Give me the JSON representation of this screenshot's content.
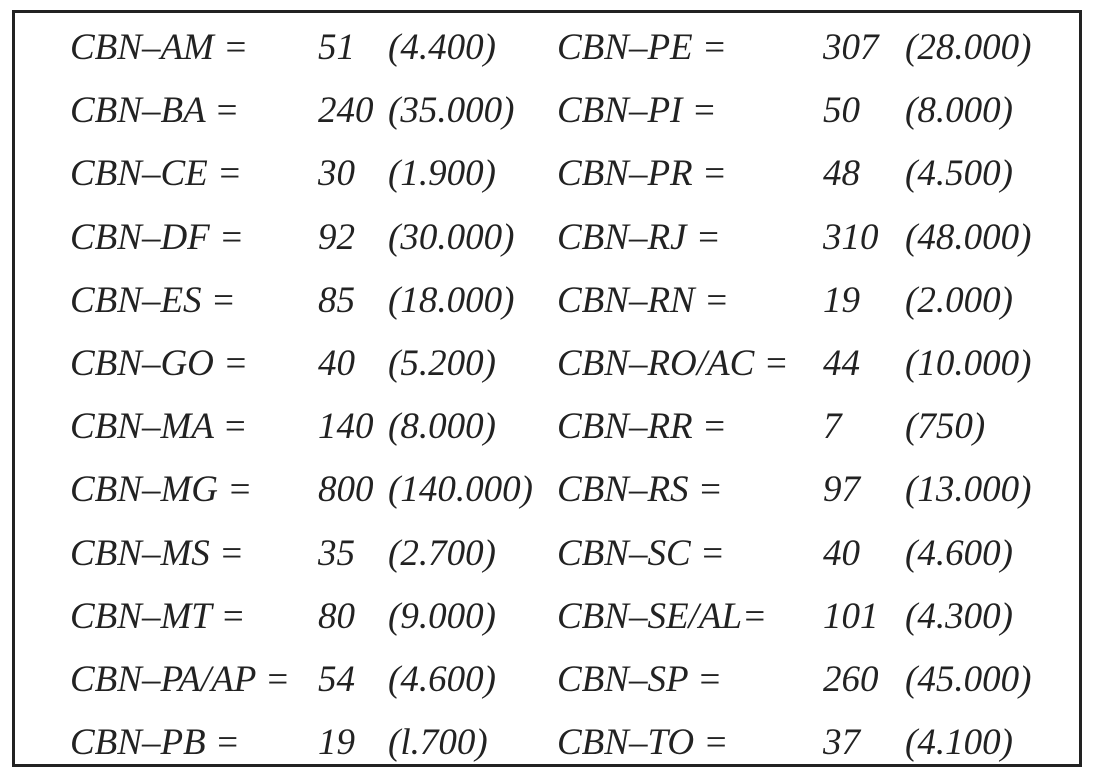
{
  "table": {
    "rows": [
      [
        "CBN–AM =",
        "51",
        "(4.400)",
        "CBN–PE =",
        "307",
        "(28.000)"
      ],
      [
        "CBN–BA =",
        "240",
        "(35.000)",
        "CBN–PI =",
        "50",
        "(8.000)"
      ],
      [
        "CBN–CE =",
        "30",
        "(1.900)",
        "CBN–PR =",
        "48",
        "(4.500)"
      ],
      [
        "CBN–DF =",
        "92",
        "(30.000)",
        "CBN–RJ =",
        "310",
        "(48.000)"
      ],
      [
        "CBN–ES =",
        "85",
        "(18.000)",
        "CBN–RN =",
        "19",
        "(2.000)"
      ],
      [
        "CBN–GO =",
        "40",
        "(5.200)",
        "CBN–RO/AC =",
        "44",
        "(10.000)"
      ],
      [
        "CBN–MA =",
        "140",
        "(8.000)",
        "CBN–RR =",
        "7",
        "(750)"
      ],
      [
        "CBN–MG =",
        "800",
        "(140.000)",
        "CBN–RS =",
        "97",
        "(13.000)"
      ],
      [
        "CBN–MS =",
        "35",
        "(2.700)",
        "CBN–SC =",
        "40",
        "(4.600)"
      ],
      [
        "CBN–MT =",
        "80",
        "(9.000)",
        "CBN–SE/AL=",
        "101",
        "(4.300)"
      ],
      [
        "CBN–PA/AP =",
        "54",
        "(4.600)",
        "CBN–SP =",
        "260",
        "(45.000)"
      ],
      [
        "CBN–PB =",
        "19",
        "(l.700)",
        "CBN–TO =",
        "37",
        "(4.100)"
      ]
    ]
  }
}
